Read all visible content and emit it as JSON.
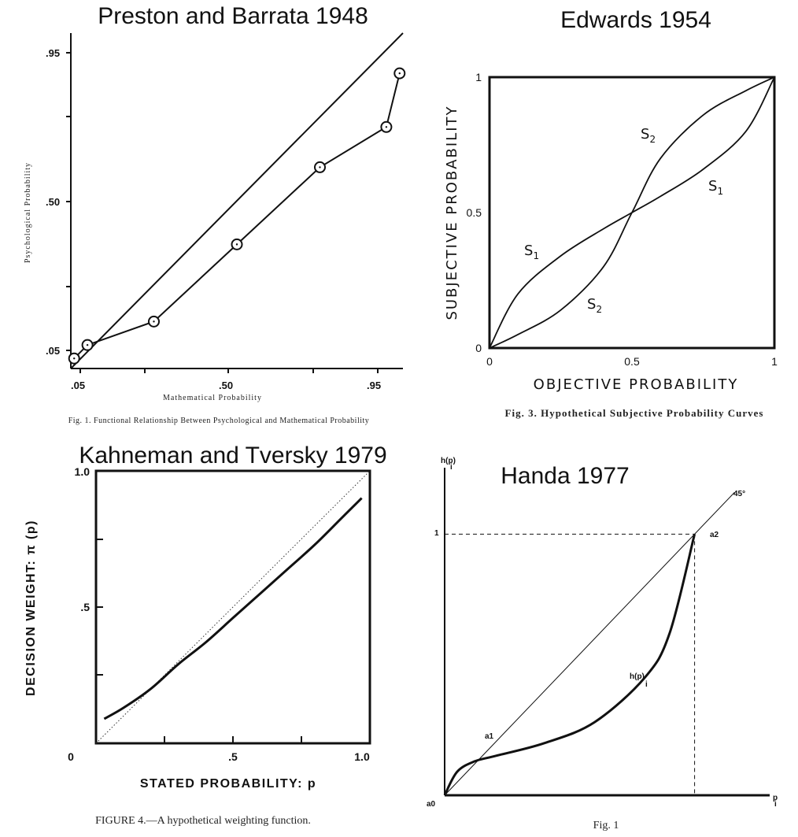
{
  "chart_data": [
    {
      "type": "line",
      "title": "Preston and Barrata 1948",
      "xlabel": "Mathematical Probability",
      "ylabel": "Psychological Probability",
      "caption": "Fig. 1. Functional Relationship Between Psychological and Mathematical Probability",
      "x_ticks": [
        ".05",
        ".50",
        ".95"
      ],
      "y_ticks": [
        ".05",
        ".50",
        ".95"
      ],
      "xlim": [
        0.0,
        1.0
      ],
      "ylim": [
        0.0,
        1.0
      ],
      "series": [
        {
          "x": [
            0.01,
            0.05,
            0.25,
            0.5,
            0.75,
            0.95,
            0.99
          ],
          "y": [
            0.03,
            0.07,
            0.14,
            0.37,
            0.6,
            0.72,
            0.88
          ]
        },
        {
          "x": [
            0.0,
            1.0
          ],
          "y": [
            0.0,
            1.0
          ]
        }
      ]
    },
    {
      "type": "line",
      "title": "Edwards 1954",
      "xlabel": "OBJECTIVE PROBABILITY",
      "ylabel": "SUBJECTIVE PROBABILITY",
      "caption": "Fig. 3. Hypothetical Subjective Probability Curves",
      "x_ticks": [
        "0",
        "0.5",
        "1"
      ],
      "y_ticks": [
        "0",
        "0.5",
        "1"
      ],
      "xlim": [
        0,
        1
      ],
      "ylim": [
        0,
        1
      ],
      "series": [
        {
          "name": "S1",
          "x": [
            0,
            0.1,
            0.25,
            0.4,
            0.5,
            0.6,
            0.75,
            0.9,
            1
          ],
          "y": [
            0,
            0.2,
            0.34,
            0.44,
            0.5,
            0.56,
            0.66,
            0.8,
            1
          ]
        },
        {
          "name": "S2",
          "x": [
            0,
            0.1,
            0.25,
            0.4,
            0.5,
            0.6,
            0.75,
            0.9,
            1
          ],
          "y": [
            0,
            0.05,
            0.14,
            0.3,
            0.5,
            0.7,
            0.86,
            0.95,
            1
          ]
        }
      ]
    },
    {
      "type": "line",
      "title": "Kahneman and Tversky 1979",
      "xlabel": "STATED PROBABILITY: p",
      "ylabel": "DECISION WEIGHT: π (p)",
      "caption": "FIGURE 4.—A hypothetical weighting function.",
      "x_ticks": [
        "0",
        ".5",
        "1.0"
      ],
      "y_ticks": [
        "",
        ".5",
        "1.0"
      ],
      "xlim": [
        0,
        1
      ],
      "ylim": [
        0,
        1
      ],
      "series": [
        {
          "x": [
            0.03,
            0.1,
            0.2,
            0.3,
            0.4,
            0.5,
            0.6,
            0.7,
            0.8,
            0.9,
            0.97
          ],
          "y": [
            0.09,
            0.13,
            0.2,
            0.29,
            0.37,
            0.46,
            0.55,
            0.64,
            0.73,
            0.83,
            0.9
          ]
        },
        {
          "x": [
            0,
            1
          ],
          "y": [
            0,
            1
          ]
        }
      ]
    },
    {
      "type": "line",
      "title": "Handa 1977",
      "xlabel": "p",
      "ylabel": "h(p)",
      "caption": "Fig. 1",
      "y_ticks": [
        "1"
      ],
      "annotations": [
        "45°",
        "a0",
        "a1",
        "a2",
        "h(p)"
      ],
      "xlim": [
        0,
        1.25
      ],
      "ylim": [
        0,
        1.2
      ],
      "series": [
        {
          "x": [
            0,
            0.05,
            0.12,
            0.2,
            0.4,
            0.6,
            0.8,
            0.9,
            1
          ],
          "y": [
            0,
            0.09,
            0.13,
            0.15,
            0.2,
            0.28,
            0.45,
            0.62,
            1
          ]
        },
        {
          "x": [
            0,
            1.16
          ],
          "y": [
            0,
            1.16
          ]
        }
      ]
    }
  ]
}
